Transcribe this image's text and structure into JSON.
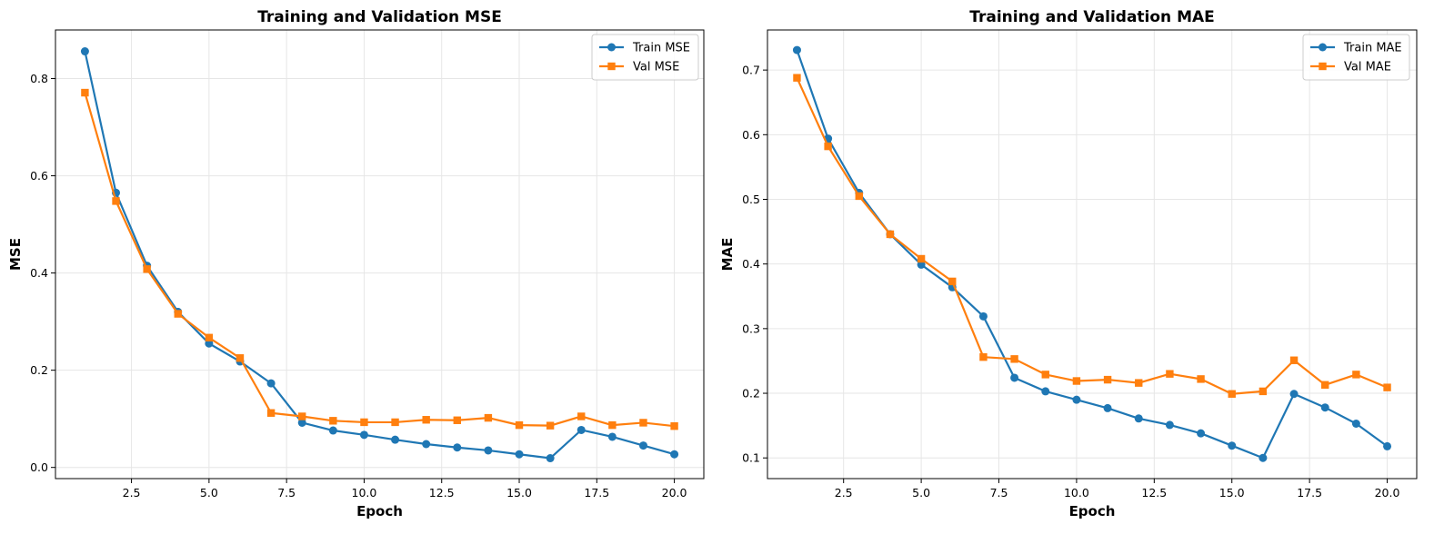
{
  "colors": {
    "train": "#1f77b4",
    "val": "#ff7f0e",
    "grid": "#e6e6e6",
    "axis": "#000000"
  },
  "chart_data": [
    {
      "type": "line",
      "title": "Training and Validation MSE",
      "xlabel": "Epoch",
      "ylabel": "MSE",
      "grid": true,
      "legend_position": "top-right",
      "xlim": [
        0.05,
        20.95
      ],
      "ylim": [
        -0.023,
        0.9
      ],
      "xticks": [
        2.5,
        5.0,
        7.5,
        10.0,
        12.5,
        15.0,
        17.5,
        20.0
      ],
      "xtick_labels": [
        "2.5",
        "5.0",
        "7.5",
        "10.0",
        "12.5",
        "15.0",
        "17.5",
        "20.0"
      ],
      "yticks": [
        0.0,
        0.2,
        0.4,
        0.6,
        0.8
      ],
      "ytick_labels": [
        "0.0",
        "0.2",
        "0.4",
        "0.6",
        "0.8"
      ],
      "x": [
        1,
        2,
        3,
        4,
        5,
        6,
        7,
        8,
        9,
        10,
        11,
        12,
        13,
        14,
        15,
        16,
        17,
        18,
        19,
        20
      ],
      "series": [
        {
          "name": "Train MSE",
          "marker": "circle",
          "color_key": "train",
          "values": [
            0.856,
            0.565,
            0.415,
            0.32,
            0.255,
            0.218,
            0.173,
            0.092,
            0.076,
            0.067,
            0.057,
            0.048,
            0.041,
            0.035,
            0.027,
            0.019,
            0.077,
            0.063,
            0.045,
            0.027
          ]
        },
        {
          "name": "Val MSE",
          "marker": "square",
          "color_key": "val",
          "values": [
            0.771,
            0.548,
            0.408,
            0.316,
            0.267,
            0.225,
            0.112,
            0.105,
            0.096,
            0.093,
            0.093,
            0.098,
            0.097,
            0.102,
            0.087,
            0.086,
            0.105,
            0.087,
            0.092,
            0.085
          ]
        }
      ]
    },
    {
      "type": "line",
      "title": "Training and Validation MAE",
      "xlabel": "Epoch",
      "ylabel": "MAE",
      "grid": true,
      "legend_position": "top-right",
      "xlim": [
        0.05,
        20.95
      ],
      "ylim": [
        0.068,
        0.762
      ],
      "xticks": [
        2.5,
        5.0,
        7.5,
        10.0,
        12.5,
        15.0,
        17.5,
        20.0
      ],
      "xtick_labels": [
        "2.5",
        "5.0",
        "7.5",
        "10.0",
        "12.5",
        "15.0",
        "17.5",
        "20.0"
      ],
      "yticks": [
        0.1,
        0.2,
        0.3,
        0.4,
        0.5,
        0.6,
        0.7
      ],
      "ytick_labels": [
        "0.1",
        "0.2",
        "0.3",
        "0.4",
        "0.5",
        "0.6",
        "0.7"
      ],
      "x": [
        1,
        2,
        3,
        4,
        5,
        6,
        7,
        8,
        9,
        10,
        11,
        12,
        13,
        14,
        15,
        16,
        17,
        18,
        19,
        20
      ],
      "series": [
        {
          "name": "Train MAE",
          "marker": "circle",
          "color_key": "train",
          "values": [
            0.731,
            0.594,
            0.51,
            0.446,
            0.399,
            0.364,
            0.319,
            0.224,
            0.203,
            0.19,
            0.177,
            0.161,
            0.151,
            0.138,
            0.119,
            0.1,
            0.199,
            0.178,
            0.153,
            0.118
          ]
        },
        {
          "name": "Val MAE",
          "marker": "square",
          "color_key": "val",
          "values": [
            0.688,
            0.582,
            0.505,
            0.446,
            0.408,
            0.373,
            0.256,
            0.253,
            0.229,
            0.219,
            0.221,
            0.216,
            0.23,
            0.222,
            0.199,
            0.203,
            0.251,
            0.213,
            0.229,
            0.209
          ]
        }
      ]
    }
  ]
}
